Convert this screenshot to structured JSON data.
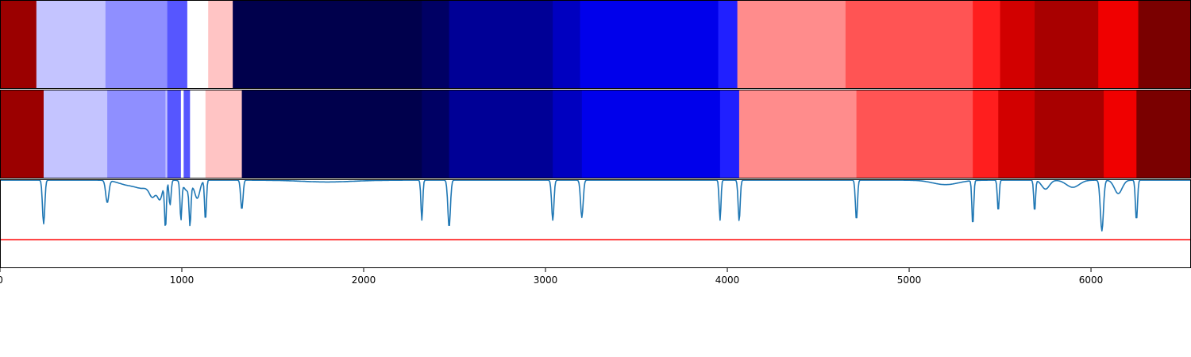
{
  "chart_data": {
    "type": "heatmap",
    "title": "",
    "xlabel": "",
    "ylabel": "",
    "xlim": [
      0,
      6550
    ],
    "x_ticks": [
      0,
      1000,
      2000,
      3000,
      4000,
      5000,
      6000
    ],
    "x_tick_labels": [
      "0",
      "1000",
      "2000",
      "3000",
      "4000",
      "5000",
      "6000"
    ],
    "grid": false,
    "legend": "none",
    "segment_rows": [
      {
        "segments": [
          {
            "start": 0,
            "end": 200,
            "color": "#9b0000"
          },
          {
            "start": 200,
            "end": 580,
            "color": "#c4c4ff"
          },
          {
            "start": 580,
            "end": 920,
            "color": "#8f8fff"
          },
          {
            "start": 920,
            "end": 1030,
            "color": "#5656ff"
          },
          {
            "start": 1030,
            "end": 1145,
            "color": "#ffffff"
          },
          {
            "start": 1145,
            "end": 1280,
            "color": "#ffc4c4"
          },
          {
            "start": 1280,
            "end": 2320,
            "color": "#00004c"
          },
          {
            "start": 2320,
            "end": 2470,
            "color": "#000064"
          },
          {
            "start": 2470,
            "end": 3040,
            "color": "#000096"
          },
          {
            "start": 3040,
            "end": 3190,
            "color": "#0000c0"
          },
          {
            "start": 3190,
            "end": 3950,
            "color": "#0000eb"
          },
          {
            "start": 3950,
            "end": 4055,
            "color": "#2020ff"
          },
          {
            "start": 4055,
            "end": 4650,
            "color": "#ff8c8c"
          },
          {
            "start": 4650,
            "end": 5350,
            "color": "#ff5454"
          },
          {
            "start": 5350,
            "end": 5500,
            "color": "#ff1e1e"
          },
          {
            "start": 5500,
            "end": 5690,
            "color": "#d20000"
          },
          {
            "start": 5690,
            "end": 6040,
            "color": "#a80000"
          },
          {
            "start": 6040,
            "end": 6260,
            "color": "#f00000"
          },
          {
            "start": 6260,
            "end": 6550,
            "color": "#7a0000"
          }
        ]
      },
      {
        "segments": [
          {
            "start": 0,
            "end": 240,
            "color": "#9b0000"
          },
          {
            "start": 240,
            "end": 590,
            "color": "#c4c4ff"
          },
          {
            "start": 590,
            "end": 910,
            "color": "#8f8fff"
          },
          {
            "start": 910,
            "end": 920,
            "color": "#c4c4ff"
          },
          {
            "start": 920,
            "end": 995,
            "color": "#5656ff"
          },
          {
            "start": 995,
            "end": 1010,
            "color": "#ffffff"
          },
          {
            "start": 1010,
            "end": 1045,
            "color": "#5656ff"
          },
          {
            "start": 1045,
            "end": 1130,
            "color": "#ffffff"
          },
          {
            "start": 1130,
            "end": 1330,
            "color": "#ffc4c4"
          },
          {
            "start": 1330,
            "end": 2320,
            "color": "#00004c"
          },
          {
            "start": 2320,
            "end": 2470,
            "color": "#000064"
          },
          {
            "start": 2470,
            "end": 3040,
            "color": "#000096"
          },
          {
            "start": 3040,
            "end": 3200,
            "color": "#0000c0"
          },
          {
            "start": 3200,
            "end": 3960,
            "color": "#0000eb"
          },
          {
            "start": 3960,
            "end": 4065,
            "color": "#2020ff"
          },
          {
            "start": 4065,
            "end": 4710,
            "color": "#ff8c8c"
          },
          {
            "start": 4710,
            "end": 5350,
            "color": "#ff5454"
          },
          {
            "start": 5350,
            "end": 5490,
            "color": "#ff1e1e"
          },
          {
            "start": 5490,
            "end": 5690,
            "color": "#d20000"
          },
          {
            "start": 5690,
            "end": 6070,
            "color": "#a80000"
          },
          {
            "start": 6070,
            "end": 6250,
            "color": "#f00000"
          },
          {
            "start": 6250,
            "end": 6550,
            "color": "#7a0000"
          }
        ]
      }
    ],
    "line_panel": {
      "ylim": [
        0,
        1
      ],
      "threshold": 0.32,
      "threshold_color": "#ff0000",
      "line_color": "#1f77b4",
      "baseline": 0.99,
      "dips": [
        {
          "x": 240,
          "depth": 0.49,
          "width": 9
        },
        {
          "x": 590,
          "depth": 0.25,
          "width": 12
        },
        {
          "x": 700,
          "depth": 0.05,
          "width": 70
        },
        {
          "x": 790,
          "depth": 0.08,
          "width": 60
        },
        {
          "x": 840,
          "depth": 0.15,
          "width": 25
        },
        {
          "x": 880,
          "depth": 0.2,
          "width": 20
        },
        {
          "x": 910,
          "depth": 0.52,
          "width": 7
        },
        {
          "x": 935,
          "depth": 0.28,
          "width": 8
        },
        {
          "x": 995,
          "depth": 0.42,
          "width": 7
        },
        {
          "x": 1030,
          "depth": 0.12,
          "width": 30
        },
        {
          "x": 1045,
          "depth": 0.42,
          "width": 7
        },
        {
          "x": 1085,
          "depth": 0.2,
          "width": 20
        },
        {
          "x": 1130,
          "depth": 0.45,
          "width": 7
        },
        {
          "x": 1330,
          "depth": 0.33,
          "width": 9
        },
        {
          "x": 1800,
          "depth": 0.02,
          "width": 200
        },
        {
          "x": 2320,
          "depth": 0.45,
          "width": 7
        },
        {
          "x": 2470,
          "depth": 0.53,
          "width": 10
        },
        {
          "x": 3040,
          "depth": 0.45,
          "width": 9
        },
        {
          "x": 3200,
          "depth": 0.42,
          "width": 10
        },
        {
          "x": 3960,
          "depth": 0.45,
          "width": 7
        },
        {
          "x": 4065,
          "depth": 0.46,
          "width": 8
        },
        {
          "x": 4710,
          "depth": 0.45,
          "width": 8
        },
        {
          "x": 5200,
          "depth": 0.05,
          "width": 100
        },
        {
          "x": 5350,
          "depth": 0.5,
          "width": 7
        },
        {
          "x": 5490,
          "depth": 0.35,
          "width": 7
        },
        {
          "x": 5690,
          "depth": 0.35,
          "width": 7
        },
        {
          "x": 5750,
          "depth": 0.1,
          "width": 30
        },
        {
          "x": 5900,
          "depth": 0.08,
          "width": 50
        },
        {
          "x": 6060,
          "depth": 0.57,
          "width": 12
        },
        {
          "x": 6150,
          "depth": 0.15,
          "width": 30
        },
        {
          "x": 6250,
          "depth": 0.45,
          "width": 8
        }
      ]
    }
  }
}
